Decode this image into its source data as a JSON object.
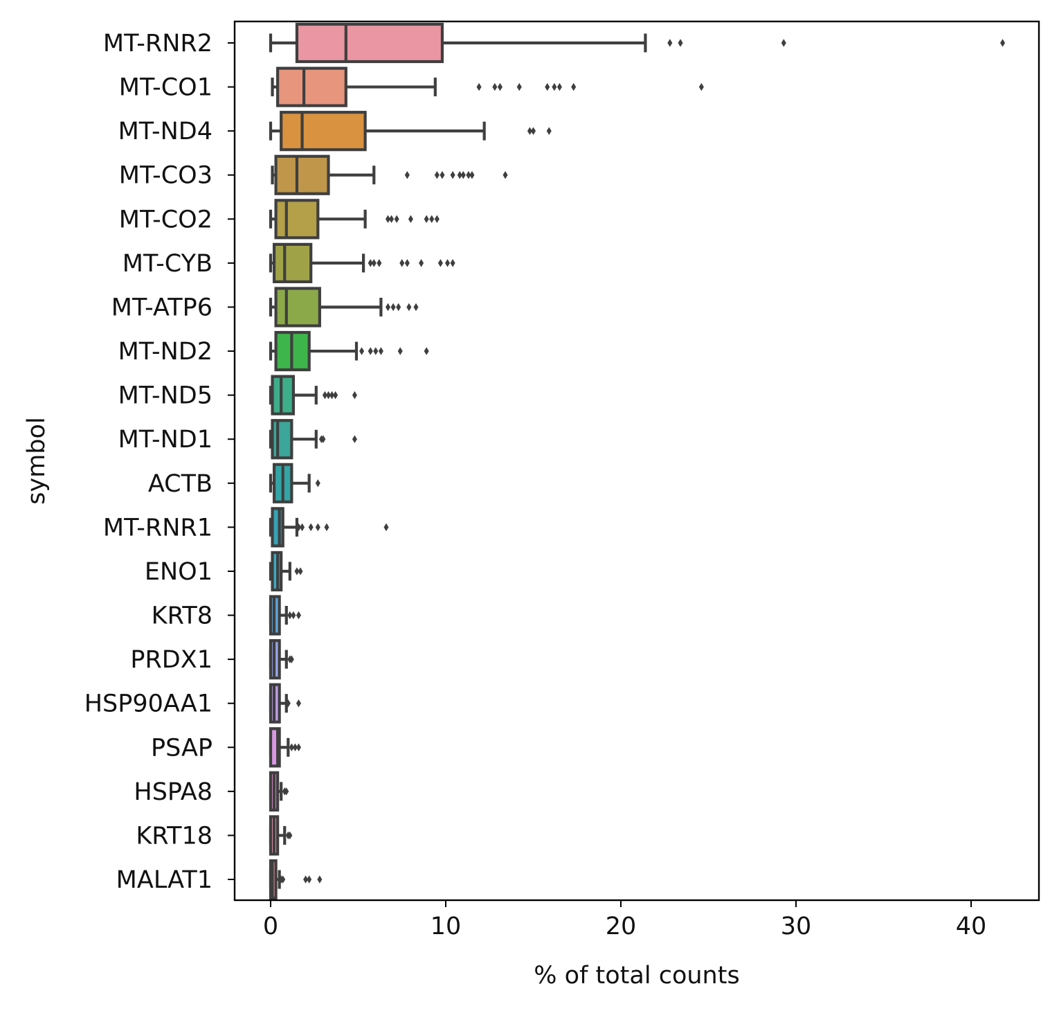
{
  "chart_data": {
    "type": "box",
    "title": "",
    "xlabel": "% of total counts",
    "ylabel": "symbol",
    "xlim": [
      -2,
      44
    ],
    "x_ticks": [
      0,
      10,
      20,
      30,
      40
    ],
    "grid": false,
    "legend": "none",
    "categories": [
      "MT-RNR2",
      "MT-CO1",
      "MT-ND4",
      "MT-CO3",
      "MT-CO2",
      "MT-CYB",
      "MT-ATP6",
      "MT-ND2",
      "MT-ND5",
      "MT-ND1",
      "ACTB",
      "MT-RNR1",
      "ENO1",
      "KRT8",
      "PRDX1",
      "HSP90AA1",
      "PSAP",
      "HSPA8",
      "KRT18",
      "MALAT1"
    ],
    "colors": [
      "#ea96a3",
      "#e8957e",
      "#d9923f",
      "#c0974a",
      "#b4a048",
      "#a0a247",
      "#8ca94a",
      "#3db54a",
      "#3eae8a",
      "#3ba699",
      "#34a5a6",
      "#37a2b4",
      "#3da8c4",
      "#62a7d8",
      "#9aa6e6",
      "#c19ee8",
      "#d797e3",
      "#e28fcf",
      "#ee9ab9",
      "#ef9aa8"
    ],
    "boxes": [
      {
        "category": "MT-RNR2",
        "whisker_low": 0.0,
        "q1": 1.5,
        "median": 4.3,
        "q3": 9.8,
        "whisker_high": 21.4,
        "outliers": [
          22.8,
          23.4,
          29.3,
          41.8
        ]
      },
      {
        "category": "MT-CO1",
        "whisker_low": 0.1,
        "q1": 0.4,
        "median": 1.9,
        "q3": 4.3,
        "whisker_high": 9.4,
        "outliers": [
          11.9,
          12.8,
          13.1,
          14.2,
          15.8,
          16.2,
          16.5,
          17.3,
          24.6
        ]
      },
      {
        "category": "MT-ND4",
        "whisker_low": 0.0,
        "q1": 0.6,
        "median": 1.8,
        "q3": 5.4,
        "whisker_high": 12.2,
        "outliers": [
          14.8,
          15.0,
          15.9
        ]
      },
      {
        "category": "MT-CO3",
        "whisker_low": 0.1,
        "q1": 0.3,
        "median": 1.5,
        "q3": 3.3,
        "whisker_high": 5.9,
        "outliers": [
          7.8,
          9.5,
          9.8,
          10.4,
          10.8,
          11.0,
          11.3,
          11.5,
          13.4
        ]
      },
      {
        "category": "MT-CO2",
        "whisker_low": 0.0,
        "q1": 0.3,
        "median": 0.9,
        "q3": 2.7,
        "whisker_high": 5.4,
        "outliers": [
          6.7,
          6.9,
          7.2,
          8.0,
          8.9,
          9.2,
          9.5
        ]
      },
      {
        "category": "MT-CYB",
        "whisker_low": 0.0,
        "q1": 0.2,
        "median": 0.8,
        "q3": 2.3,
        "whisker_high": 5.3,
        "outliers": [
          5.7,
          5.9,
          6.2,
          7.5,
          7.8,
          8.6,
          9.7,
          10.1,
          10.4
        ]
      },
      {
        "category": "MT-ATP6",
        "whisker_low": 0.0,
        "q1": 0.3,
        "median": 0.9,
        "q3": 2.8,
        "whisker_high": 6.3,
        "outliers": [
          6.7,
          7.0,
          7.3,
          7.9,
          8.3
        ]
      },
      {
        "category": "MT-ND2",
        "whisker_low": 0.0,
        "q1": 0.3,
        "median": 1.2,
        "q3": 2.2,
        "whisker_high": 4.9,
        "outliers": [
          5.2,
          5.7,
          6.0,
          6.3,
          7.4,
          8.9
        ]
      },
      {
        "category": "MT-ND5",
        "whisker_low": 0.0,
        "q1": 0.1,
        "median": 0.6,
        "q3": 1.3,
        "whisker_high": 2.6,
        "outliers": [
          3.1,
          3.3,
          3.5,
          3.7,
          4.8
        ]
      },
      {
        "category": "MT-ND1",
        "whisker_low": 0.0,
        "q1": 0.1,
        "median": 0.4,
        "q3": 1.2,
        "whisker_high": 2.6,
        "outliers": [
          2.9,
          3.0,
          4.8
        ]
      },
      {
        "category": "ACTB",
        "whisker_low": 0.0,
        "q1": 0.2,
        "median": 0.7,
        "q3": 1.2,
        "whisker_high": 2.2,
        "outliers": [
          2.7
        ]
      },
      {
        "category": "MT-RNR1",
        "whisker_low": 0.0,
        "q1": 0.1,
        "median": 0.5,
        "q3": 0.7,
        "whisker_high": 1.5,
        "outliers": [
          1.6,
          1.8,
          2.3,
          2.7,
          3.2,
          6.6
        ]
      },
      {
        "category": "ENO1",
        "whisker_low": 0.0,
        "q1": 0.1,
        "median": 0.4,
        "q3": 0.6,
        "whisker_high": 1.1,
        "outliers": [
          1.5,
          1.7
        ]
      },
      {
        "category": "KRT8",
        "whisker_low": 0.0,
        "q1": 0.0,
        "median": 0.2,
        "q3": 0.5,
        "whisker_high": 0.9,
        "outliers": [
          1.1,
          1.3,
          1.6
        ]
      },
      {
        "category": "PRDX1",
        "whisker_low": 0.0,
        "q1": 0.0,
        "median": 0.2,
        "q3": 0.5,
        "whisker_high": 0.9,
        "outliers": [
          1.1,
          1.2
        ]
      },
      {
        "category": "HSP90AA1",
        "whisker_low": 0.0,
        "q1": 0.0,
        "median": 0.2,
        "q3": 0.5,
        "whisker_high": 0.9,
        "outliers": [
          1.0,
          1.6
        ]
      },
      {
        "category": "PSAP",
        "whisker_low": 0.0,
        "q1": 0.0,
        "median": 0.4,
        "q3": 0.5,
        "whisker_high": 1.0,
        "outliers": [
          1.2,
          1.4,
          1.6
        ]
      },
      {
        "category": "HSPA8",
        "whisker_low": 0.0,
        "q1": 0.0,
        "median": 0.2,
        "q3": 0.4,
        "whisker_high": 0.6,
        "outliers": [
          0.8,
          0.9
        ]
      },
      {
        "category": "KRT18",
        "whisker_low": 0.0,
        "q1": 0.0,
        "median": 0.2,
        "q3": 0.4,
        "whisker_high": 0.8,
        "outliers": [
          1.0,
          1.1
        ]
      },
      {
        "category": "MALAT1",
        "whisker_low": 0.0,
        "q1": 0.0,
        "median": 0.1,
        "q3": 0.3,
        "whisker_high": 0.5,
        "outliers": [
          0.6,
          0.7,
          2.0,
          2.2,
          2.8
        ]
      }
    ]
  }
}
